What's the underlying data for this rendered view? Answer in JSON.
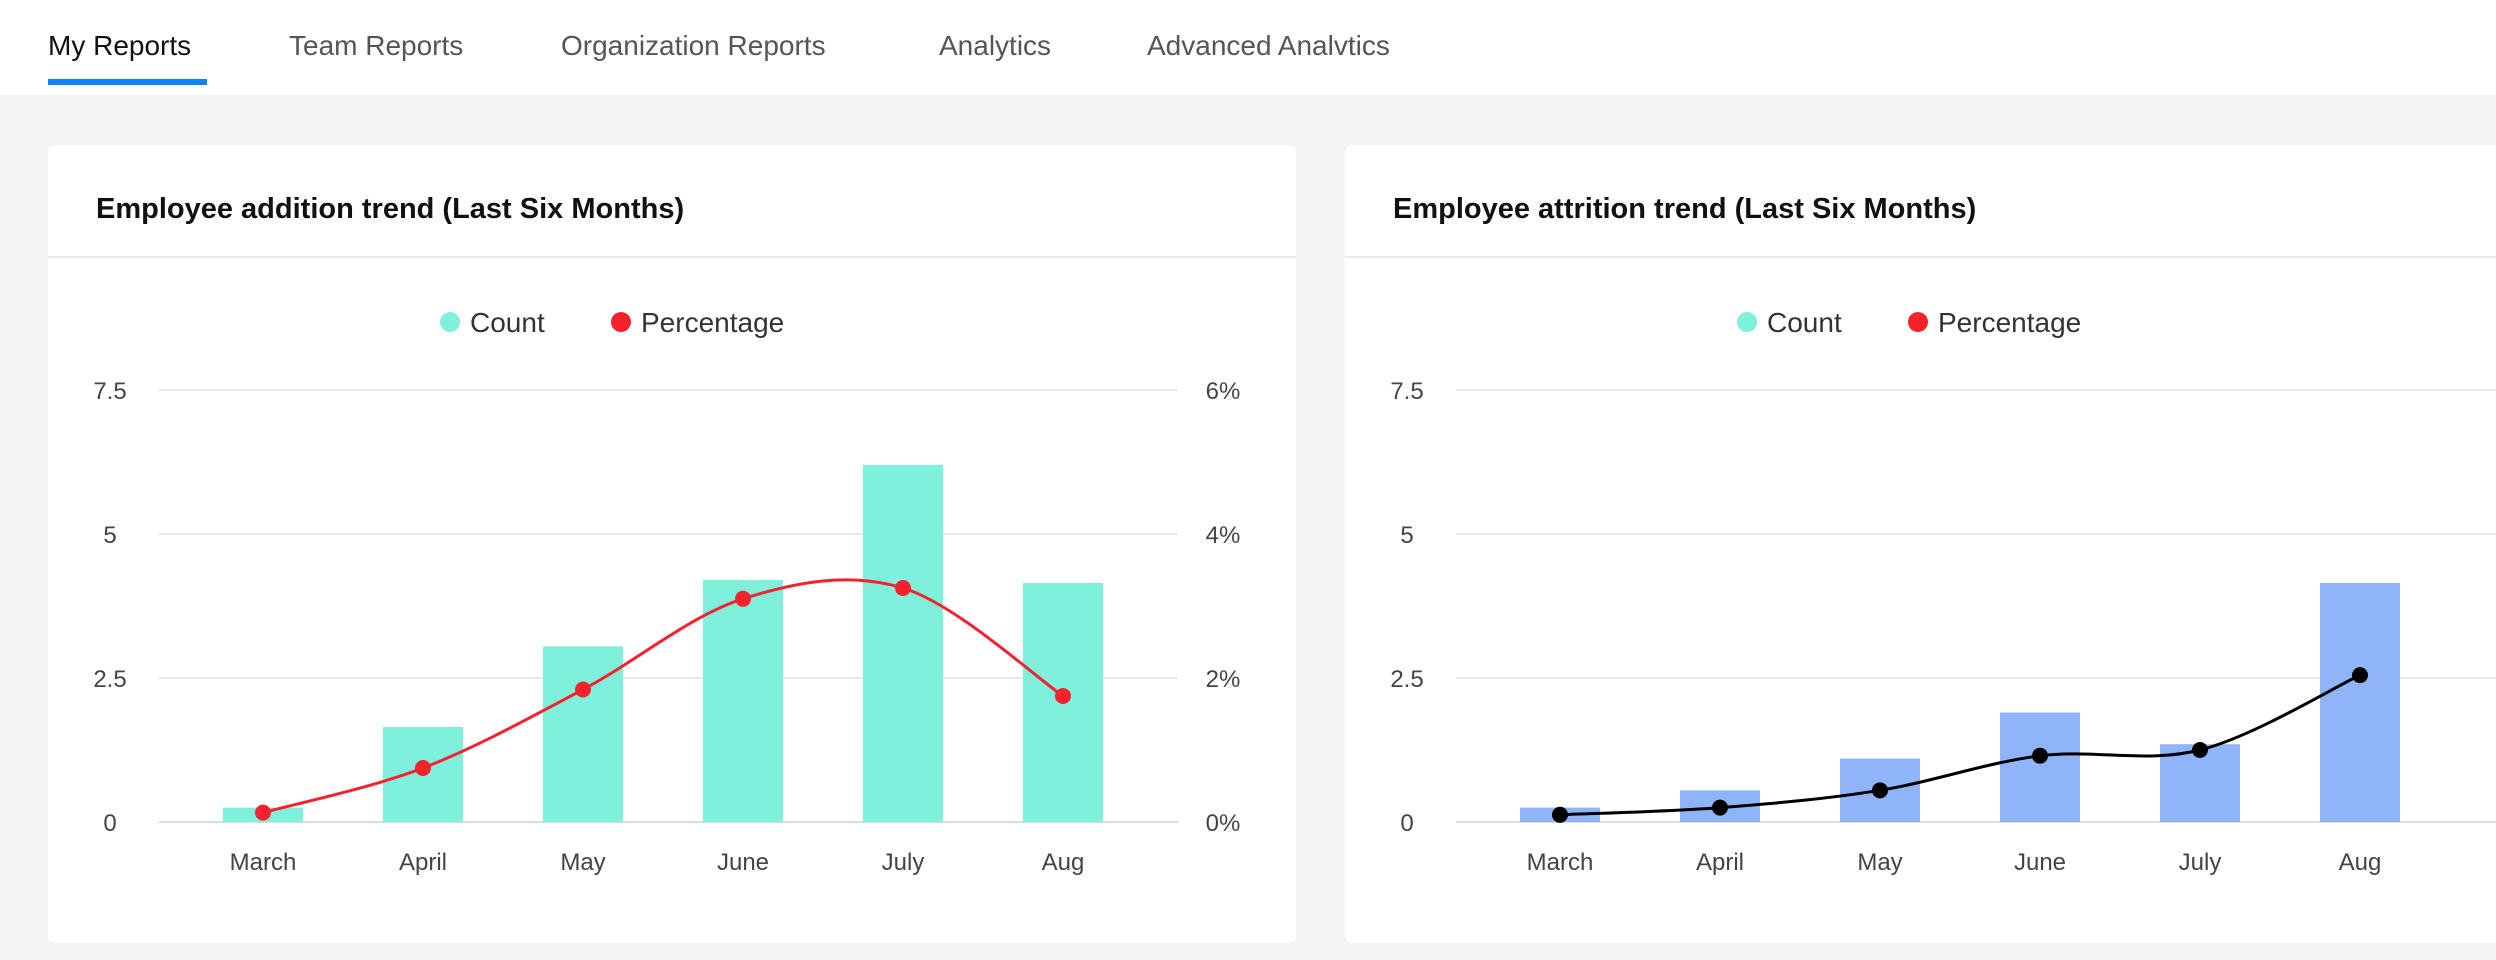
{
  "tabs": [
    {
      "label": "My Reports",
      "active": true
    },
    {
      "label": "Team Reports",
      "active": false
    },
    {
      "label": "Organization Reports",
      "active": false
    },
    {
      "label": "Analytics",
      "active": false
    },
    {
      "label": "Advanced Analvtics",
      "active": false
    }
  ],
  "colors": {
    "accent": "#0a84ff",
    "count_teal": "#7ef0dc",
    "count_blue": "#8fb4fa",
    "percentage_red": "#f5222d",
    "line_black": "#000000"
  },
  "chart_data": [
    {
      "type": "bar+line",
      "title": "Employee addition trend (Last Six Months)",
      "categories": [
        "March",
        "April",
        "May",
        "June",
        "July",
        "Aug"
      ],
      "series": [
        {
          "name": "Count",
          "type": "bar",
          "axis": "left",
          "color": "#7ef0dc",
          "values": [
            0.25,
            1.65,
            3.05,
            4.2,
            6.2,
            4.15
          ]
        },
        {
          "name": "Percentage",
          "type": "spline",
          "axis": "right",
          "color": "#f5222d",
          "legend_color": "#f5222d",
          "values": [
            0.13,
            0.75,
            1.84,
            3.1,
            3.25,
            1.75
          ]
        }
      ],
      "ylim": [
        0,
        7.5
      ],
      "yticks": [
        "0",
        "2.5",
        "5",
        "7.5"
      ],
      "y2lim": [
        0,
        6
      ],
      "y2ticks": [
        "0%",
        "2%",
        "4%",
        "6%"
      ],
      "grid": true,
      "legend": "top-center"
    },
    {
      "type": "bar+line",
      "title": "Employee attrition trend (Last Six Months)",
      "categories": [
        "March",
        "April",
        "May",
        "June",
        "July",
        "Aug"
      ],
      "series": [
        {
          "name": "Count",
          "type": "bar",
          "axis": "left",
          "color": "#8fb4fa",
          "legend_color": "#7ef0dc",
          "values": [
            0.25,
            0.55,
            1.1,
            1.9,
            1.35,
            4.15
          ]
        },
        {
          "name": "Percentage",
          "type": "spline",
          "axis": "right",
          "color": "#000000",
          "legend_color": "#f5222d",
          "values": [
            0.1,
            0.2,
            0.44,
            0.92,
            1.0,
            2.04
          ]
        }
      ],
      "ylim": [
        0,
        7.5
      ],
      "yticks": [
        "0",
        "2.5",
        "5",
        "7.5"
      ],
      "y2lim": [
        0,
        6
      ],
      "y2ticks": [],
      "grid": true,
      "legend": "top-center"
    }
  ]
}
